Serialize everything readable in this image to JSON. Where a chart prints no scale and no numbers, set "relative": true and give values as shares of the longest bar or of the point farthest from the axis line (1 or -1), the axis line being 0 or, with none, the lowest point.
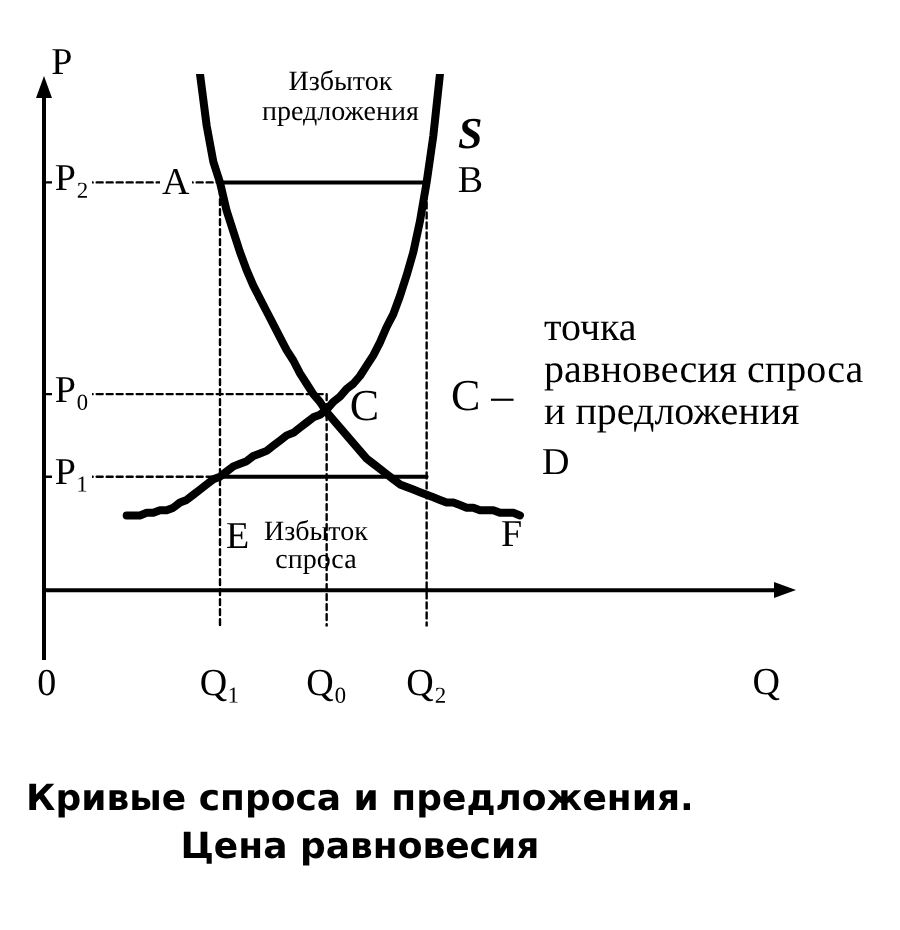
{
  "chart_data": {
    "type": "line",
    "title": "Кривые спроса и предложения.\nЦена равновесия",
    "xlabel": "Q",
    "ylabel": "P",
    "relative": true,
    "categories": [
      "0",
      null,
      null,
      null,
      null,
      null,
      null,
      null,
      null,
      null,
      null,
      null,
      null,
      null,
      null,
      null,
      null,
      null,
      null,
      null,
      null,
      null,
      null,
      null,
      null,
      null,
      "Q₁",
      null,
      null,
      null,
      null,
      null,
      null,
      null,
      null,
      null,
      null,
      null,
      null,
      null,
      null,
      null,
      "Q₀",
      null,
      null,
      null,
      null,
      null,
      null,
      null,
      null,
      null,
      null,
      null,
      null,
      null,
      null,
      "Q₂",
      null,
      null,
      null,
      null,
      null,
      null,
      null,
      null,
      null,
      null,
      null,
      null,
      null,
      null,
      null,
      null,
      null,
      null,
      null,
      null,
      null,
      null,
      null,
      null,
      null,
      null,
      null,
      null,
      null,
      null,
      null,
      null,
      null,
      null,
      null,
      null,
      null,
      null,
      null,
      null,
      null,
      null,
      null,
      null,
      null,
      null,
      null,
      null,
      null,
      null,
      null,
      null,
      null,
      null,
      null
    ],
    "series": [
      {
        "name": "D",
        "color": "#000000",
        "values": [
          null,
          null,
          null,
          null,
          null,
          null,
          null,
          null,
          null,
          null,
          null,
          null,
          null,
          null,
          null,
          null,
          null,
          null,
          null,
          null,
          null,
          null,
          null,
          1,
          0.9,
          0.83,
          0.79,
          0.735,
          0.695,
          0.655,
          0.62,
          0.59,
          0.565,
          0.54,
          0.515,
          0.49,
          0.465,
          0.445,
          0.42,
          0.4,
          0.38,
          0.365,
          0.345,
          0.33,
          0.315,
          0.3,
          0.285,
          0.27,
          0.255,
          0.245,
          0.235,
          0.225,
          0.215,
          0.205,
          0.2,
          0.195,
          0.19,
          0.185,
          0.18,
          0.175,
          0.17,
          0.17,
          0.165,
          0.16,
          0.16,
          0.155,
          0.155,
          0.155,
          0.15,
          0.15,
          0.15,
          0.145,
          null,
          null,
          null,
          null,
          null,
          null,
          null,
          null,
          null,
          null,
          null,
          null,
          null,
          null,
          null,
          null,
          null,
          null,
          null,
          null,
          null,
          null,
          null,
          null,
          null,
          null,
          null,
          null,
          null,
          null,
          null,
          null,
          null,
          null,
          null,
          null,
          null,
          null,
          null,
          null,
          null
        ]
      },
      {
        "name": "S",
        "color": "#000000",
        "values": [
          null,
          null,
          null,
          null,
          null,
          null,
          null,
          null,
          null,
          null,
          null,
          null,
          0.145,
          0.145,
          0.145,
          0.15,
          0.15,
          0.155,
          0.155,
          0.16,
          0.17,
          0.175,
          0.185,
          0.195,
          0.205,
          0.215,
          0.22,
          0.23,
          0.24,
          0.245,
          0.25,
          0.26,
          0.265,
          0.27,
          0.28,
          0.29,
          0.3,
          0.305,
          0.315,
          0.325,
          0.335,
          0.34,
          0.35,
          0.365,
          0.375,
          0.39,
          0.4,
          0.415,
          0.435,
          0.455,
          0.48,
          0.51,
          0.535,
          0.57,
          0.61,
          0.655,
          0.715,
          0.79,
          0.88,
          1,
          null,
          null,
          null,
          null,
          null,
          null,
          null,
          null,
          null,
          null,
          null,
          null,
          null,
          null,
          null,
          null,
          null,
          null,
          null,
          null,
          null,
          null,
          null,
          null,
          null,
          null,
          null,
          null,
          null,
          null,
          null,
          null,
          null,
          null,
          null,
          null,
          null,
          null,
          null,
          null,
          null,
          null,
          null,
          null,
          null,
          null,
          null,
          null,
          null,
          null,
          null,
          null,
          null
        ]
      },
      {
        "color": "#000000",
        "x": [
          "Q₁",
          "Q₂"
        ],
        "values": [
          0.79,
          0.79
        ]
      },
      {
        "color": "#000000",
        "x": [
          "Q₁",
          "Q₂"
        ],
        "values": [
          0.22,
          0.22
        ]
      },
      {
        "name": "P₂",
        "color": "#000000",
        "line_style": "dashed",
        "x": [
          "0",
          "Q₁",
          "Q₁"
        ],
        "values": [
          0.79,
          0.79,
          -0.07
        ]
      },
      {
        "name": "P₀",
        "color": "#000000",
        "line_style": "dashed",
        "x": [
          "0",
          "Q₀",
          "Q₀"
        ],
        "values": [
          0.38,
          0.38,
          -0.07
        ]
      },
      {
        "name": "P₁",
        "color": "#000000",
        "line_style": "dashed",
        "x": [
          "0",
          "Q₁"
        ],
        "values": [
          0.22,
          0.22
        ]
      },
      {
        "color": "#000000",
        "line_style": "dashed",
        "x": [
          "Q₂",
          "Q₂"
        ],
        "values": [
          0.79,
          -0.07
        ]
      }
    ],
    "annotations": [
      {
        "text": "A",
        "x": "Q₁",
        "y": 0.79
      },
      {
        "text": "B",
        "x": "Q₂",
        "y": 0.79
      },
      {
        "text": "C",
        "x": "Q₀",
        "y": 0.35
      },
      {
        "text": "E",
        "x": "Q₁",
        "y": 0.22
      },
      "F",
      "Избыток\nпредложения",
      "Избыток\nспроса",
      "C –",
      "точка\nравновесия спроса\nи предложения"
    ]
  }
}
